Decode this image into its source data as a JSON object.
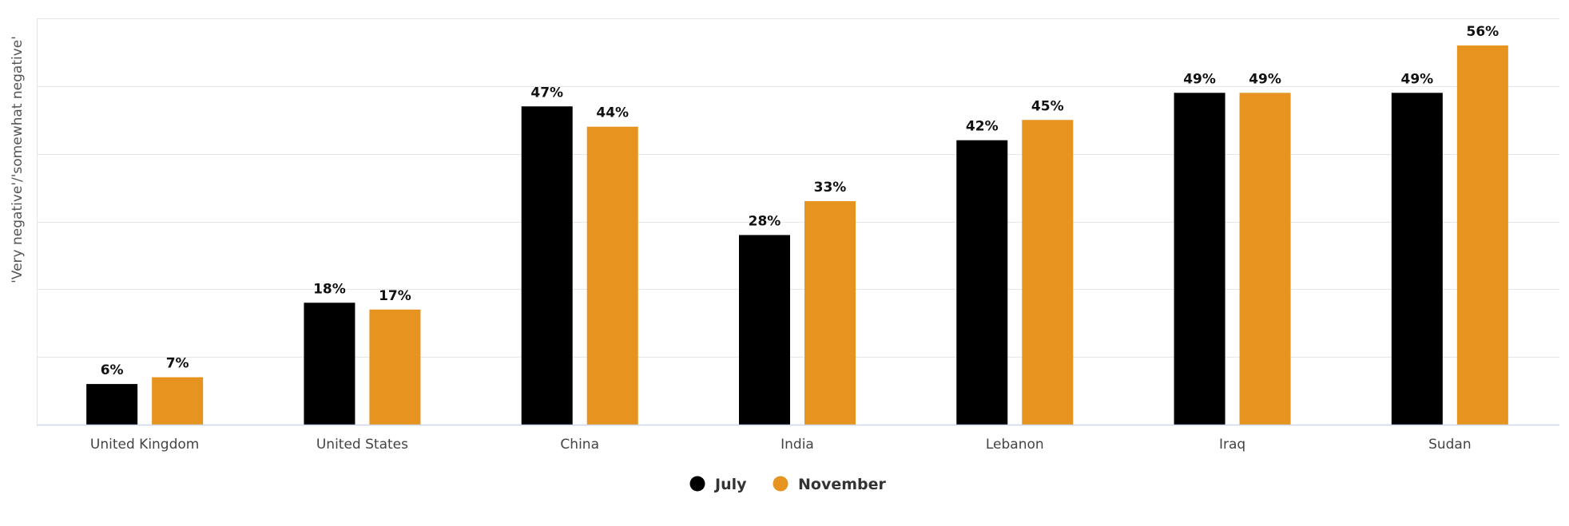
{
  "chart_data": {
    "type": "bar",
    "title": "",
    "xlabel": "",
    "ylabel": "'Very negative'/'somewhat negative'",
    "categories": [
      "United Kingdom",
      "United States",
      "China",
      "India",
      "Lebanon",
      "Iraq",
      "Sudan"
    ],
    "series": [
      {
        "name": "July",
        "color": "#000000",
        "values": [
          6,
          18,
          47,
          28,
          42,
          49,
          49
        ]
      },
      {
        "name": "November",
        "color": "#E79320",
        "values": [
          7,
          17,
          44,
          33,
          45,
          49,
          56
        ]
      }
    ],
    "value_suffix": "%",
    "ylim": [
      0,
      60
    ],
    "y_gridlines": [
      10,
      20,
      30,
      40,
      50,
      60
    ],
    "grid": true,
    "legend_position": "bottom-center",
    "colors": {
      "gridline": "#e6e6e6",
      "axis": "#ccd6eb",
      "background": "#ffffff"
    }
  }
}
